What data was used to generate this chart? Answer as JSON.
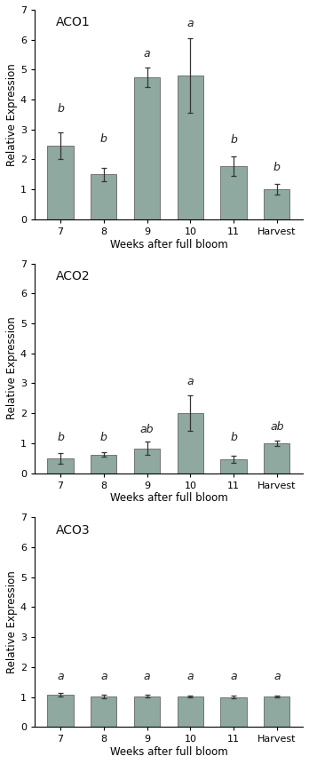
{
  "charts": [
    {
      "title": "ACO1",
      "categories": [
        "7",
        "8",
        "9",
        "10",
        "11",
        "Harvest"
      ],
      "values": [
        2.45,
        1.5,
        4.75,
        4.8,
        1.78,
        1.0
      ],
      "errors": [
        0.45,
        0.22,
        0.32,
        1.25,
        0.32,
        0.18
      ],
      "letters": [
        "b",
        "b",
        "a",
        "a",
        "b",
        "b"
      ],
      "letter_y": [
        3.5,
        2.5,
        5.35,
        6.35,
        2.45,
        1.55
      ]
    },
    {
      "title": "ACO2",
      "categories": [
        "7",
        "8",
        "9",
        "10",
        "11",
        "Harvest"
      ],
      "values": [
        0.48,
        0.62,
        0.82,
        2.0,
        0.45,
        1.0
      ],
      "errors": [
        0.18,
        0.08,
        0.22,
        0.6,
        0.12,
        0.08
      ],
      "letters": [
        "b",
        "b",
        "ab",
        "a",
        "b",
        "ab"
      ],
      "letter_y": [
        1.0,
        1.0,
        1.25,
        2.85,
        1.0,
        1.35
      ]
    },
    {
      "title": "ACO3",
      "categories": [
        "7",
        "8",
        "9",
        "10",
        "11",
        "Harvest"
      ],
      "values": [
        1.08,
        1.02,
        1.03,
        1.02,
        1.0,
        1.02
      ],
      "errors": [
        0.07,
        0.05,
        0.05,
        0.04,
        0.04,
        0.04
      ],
      "letters": [
        "a",
        "a",
        "a",
        "a",
        "a",
        "a"
      ],
      "letter_y": [
        1.5,
        1.5,
        1.5,
        1.5,
        1.5,
        1.5
      ]
    }
  ],
  "bar_color": "#8fa8a0",
  "bar_edgecolor": "#666666",
  "error_color": "#333333",
  "ylabel": "Relative Expression",
  "xlabel": "Weeks after full bloom",
  "ylim": [
    0,
    7
  ],
  "yticks": [
    0,
    1,
    2,
    3,
    4,
    5,
    6,
    7
  ],
  "title_fontsize": 10,
  "label_fontsize": 8.5,
  "tick_fontsize": 8,
  "letter_fontsize": 9,
  "background_color": "#ffffff"
}
